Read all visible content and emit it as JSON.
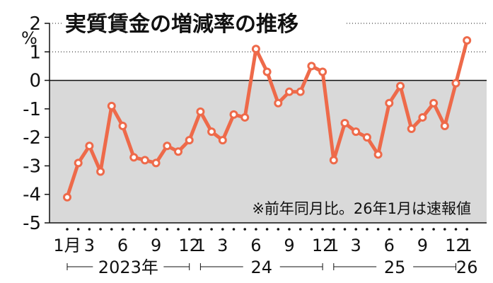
{
  "chart_data": {
    "type": "line",
    "title": "実質賃金の増減率の推移",
    "unit": "%",
    "note": "※前年同月比。26年1月は速報値",
    "ylim": [
      -5,
      2
    ],
    "yticks": [
      "2",
      "1",
      "0",
      "-1",
      "-2",
      "-3",
      "-4",
      "-5"
    ],
    "xtick_labels": [
      {
        "index": 0,
        "label": "1月"
      },
      {
        "index": 2,
        "label": "3"
      },
      {
        "index": 5,
        "label": "6"
      },
      {
        "index": 8,
        "label": "9"
      },
      {
        "index": 11,
        "label": "12"
      },
      {
        "index": 12,
        "label": "1"
      },
      {
        "index": 14,
        "label": "3"
      },
      {
        "index": 17,
        "label": "6"
      },
      {
        "index": 20,
        "label": "9"
      },
      {
        "index": 23,
        "label": "12"
      },
      {
        "index": 24,
        "label": "1"
      },
      {
        "index": 26,
        "label": "3"
      },
      {
        "index": 29,
        "label": "6"
      },
      {
        "index": 32,
        "label": "9"
      },
      {
        "index": 35,
        "label": "12"
      },
      {
        "index": 36,
        "label": "1"
      }
    ],
    "year_groups": [
      {
        "label": "2023年",
        "start": 0,
        "end": 11
      },
      {
        "label": "24",
        "start": 12,
        "end": 23
      },
      {
        "label": "25",
        "start": 24,
        "end": 35
      },
      {
        "label": "26",
        "start": 36,
        "end": 36
      }
    ],
    "series": [
      {
        "values": [
          -4.1,
          -2.9,
          -2.3,
          -3.2,
          -0.9,
          -1.6,
          -2.7,
          -2.8,
          -2.9,
          -2.3,
          -2.5,
          -2.1,
          -1.1,
          -1.8,
          -2.1,
          -1.2,
          -1.3,
          1.1,
          0.3,
          -0.8,
          -0.4,
          -0.4,
          0.5,
          0.3,
          -2.8,
          -1.5,
          -1.8,
          -2.0,
          -2.6,
          -0.8,
          -0.2,
          -1.7,
          -1.3,
          -0.8,
          -1.6,
          -0.1,
          1.4
        ]
      }
    ],
    "colors": {
      "line": "#ee6a4a",
      "negative_area": "#d9d9d9",
      "axis": "#111111"
    },
    "grid": "dotted lines at 2 and 1"
  }
}
